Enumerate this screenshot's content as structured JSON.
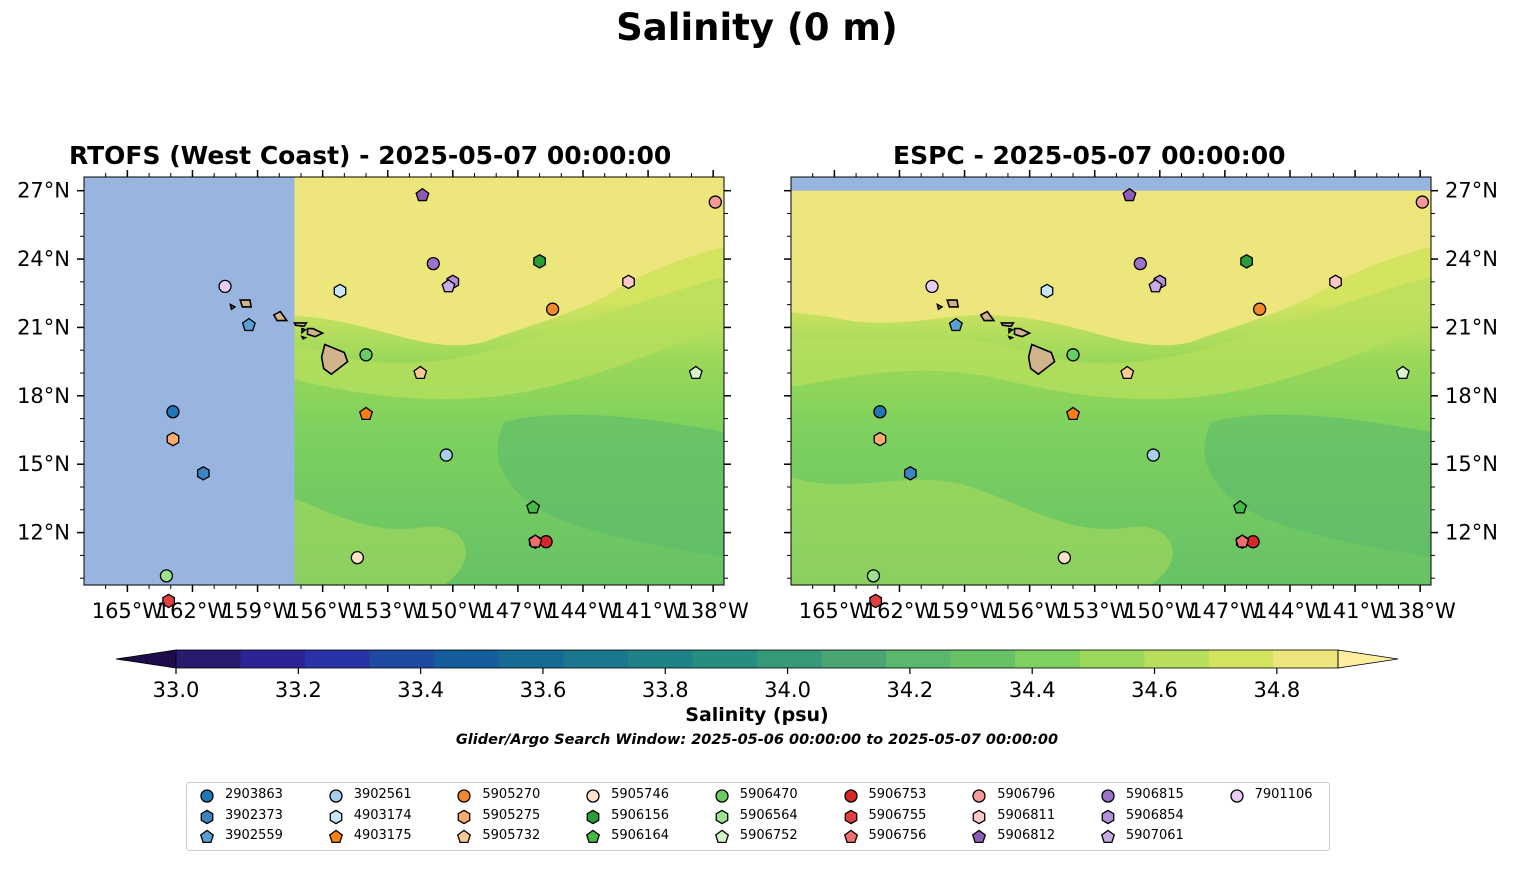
{
  "figure": {
    "title": "Salinity (0 m)",
    "colorbar_label": "Salinity (psu)",
    "search_window": "Glider/Argo Search Window: 2025-05-06 00:00:00 to 2025-05-07 00:00:00"
  },
  "panels": [
    {
      "title": "RTOFS (West Coast) - 2025-05-07 00:00:00",
      "lat_labels_side": "left",
      "coverage_east_of_lon": -157.3
    },
    {
      "title": "ESPC - 2025-05-07 00:00:00",
      "lat_labels_side": "right",
      "coverage_south_of_lat": 27.0
    }
  ],
  "map": {
    "lon_range": [
      -167.0,
      -137.5
    ],
    "lat_range": [
      9.7,
      27.6
    ],
    "lon_ticks": [
      "165°W",
      "162°W",
      "159°W",
      "156°W",
      "153°W",
      "150°W",
      "147°W",
      "144°W",
      "141°W",
      "138°W"
    ],
    "lat_ticks": [
      "12°N",
      "15°N",
      "18°N",
      "21°N",
      "24°N",
      "27°N"
    ],
    "no_data_color": "#98b5e0",
    "land_color": "#d2b48c"
  },
  "colorbar": {
    "ticks": [
      "33.0",
      "33.2",
      "33.4",
      "33.6",
      "33.8",
      "34.0",
      "34.2",
      "34.4",
      "34.6",
      "34.8"
    ],
    "min": 33.0,
    "max": 34.9,
    "step": 0.1,
    "extend": "both",
    "colors": [
      "#2a1a6f",
      "#2c2496",
      "#2a32a8",
      "#1f4aa3",
      "#155d9c",
      "#166b95",
      "#1a778e",
      "#1f8288",
      "#268d81",
      "#35997a",
      "#4aa572",
      "#5ab86d",
      "#67c266",
      "#7ed15e",
      "#9ad85a",
      "#b7df5c",
      "#d4e460",
      "#ece67c"
    ],
    "under_color": "#1e0b4a",
    "over_color": "#fdeea0"
  },
  "chart_data": {
    "type": "scatter",
    "xlabel": "",
    "ylabel": "",
    "floats": [
      {
        "id": "2903863",
        "lon": -162.9,
        "lat": 17.3,
        "marker": "circle",
        "color": "#1f77b4"
      },
      {
        "id": "3902373",
        "lon": -161.5,
        "lat": 14.6,
        "marker": "hexagon",
        "color": "#3a84c0"
      },
      {
        "id": "3902559",
        "lon": -159.4,
        "lat": 21.1,
        "marker": "pentagon",
        "color": "#5a9fd6"
      },
      {
        "id": "3902561",
        "lon": -150.3,
        "lat": 15.4,
        "marker": "circle",
        "color": "#a6cfee"
      },
      {
        "id": "4903174",
        "lon": -155.2,
        "lat": 22.6,
        "marker": "hexagon",
        "color": "#c8e6f8"
      },
      {
        "id": "4903175",
        "lon": -154.0,
        "lat": 17.2,
        "marker": "pentagon",
        "color": "#ff7f0e"
      },
      {
        "id": "5905270",
        "lon": -145.4,
        "lat": 21.8,
        "marker": "circle",
        "color": "#f28a2c"
      },
      {
        "id": "5905275",
        "lon": -162.9,
        "lat": 16.1,
        "marker": "hexagon",
        "color": "#fdad6a"
      },
      {
        "id": "5905732",
        "lon": -151.5,
        "lat": 19.0,
        "marker": "pentagon",
        "color": "#fdca94"
      },
      {
        "id": "5905746",
        "lon": -154.4,
        "lat": 10.9,
        "marker": "circle",
        "color": "#fee3c8"
      },
      {
        "id": "5906156",
        "lon": -146.0,
        "lat": 23.9,
        "marker": "hexagon",
        "color": "#2a9d36"
      },
      {
        "id": "5906164",
        "lon": -146.3,
        "lat": 13.1,
        "marker": "pentagon",
        "color": "#46b946"
      },
      {
        "id": "5906470",
        "lon": -154.0,
        "lat": 19.8,
        "marker": "circle",
        "color": "#6acc64"
      },
      {
        "id": "5906564",
        "lon": -146.2,
        "lat": 11.6,
        "marker": "hexagon",
        "color": "#9de28e"
      },
      {
        "id": "5906752",
        "lon": -138.8,
        "lat": 19.0,
        "marker": "pentagon",
        "color": "#d6f5cc"
      },
      {
        "id": "5906753",
        "lon": -145.7,
        "lat": 11.6,
        "marker": "circle",
        "color": "#d62728"
      },
      {
        "id": "5906755",
        "lon": -163.1,
        "lat": 9.0,
        "marker": "hexagon",
        "color": "#e24040"
      },
      {
        "id": "5906756",
        "lon": -146.2,
        "lat": 11.6,
        "marker": "pentagon",
        "color": "#ef6f6c"
      },
      {
        "id": "5906796",
        "lon": -137.9,
        "lat": 26.5,
        "marker": "circle",
        "color": "#f59a98"
      },
      {
        "id": "5906811",
        "lon": -141.9,
        "lat": 23.0,
        "marker": "hexagon",
        "color": "#fcc9c6"
      },
      {
        "id": "5906812",
        "lon": -151.4,
        "lat": 26.8,
        "marker": "pentagon",
        "color": "#8c5db3"
      },
      {
        "id": "5906815",
        "lon": -150.9,
        "lat": 23.8,
        "marker": "circle",
        "color": "#9b72c9"
      },
      {
        "id": "5906854",
        "lon": -150.0,
        "lat": 23.0,
        "marker": "hexagon",
        "color": "#b390d8"
      },
      {
        "id": "5907061",
        "lon": -150.2,
        "lat": 22.8,
        "marker": "pentagon",
        "color": "#c9abe6"
      },
      {
        "id": "7901106",
        "lon": -160.5,
        "lat": 22.8,
        "marker": "circle",
        "color": "#e6cdf5"
      },
      {
        "id": "",
        "lon": -163.2,
        "lat": 10.1,
        "marker": "circle",
        "color": "#9de28e"
      }
    ]
  },
  "legend": {
    "columns": 9,
    "entries": [
      "2903863",
      "3902373",
      "3902559",
      "3902561",
      "4903174",
      "4903175",
      "5905270",
      "5905275",
      "5905732",
      "5905746",
      "5906156",
      "5906164",
      "5906470",
      "5906564",
      "5906752",
      "5906753",
      "5906755",
      "5906756",
      "5906796",
      "5906811",
      "5906812",
      "5906815",
      "5906854",
      "5907061",
      "7901106"
    ]
  }
}
